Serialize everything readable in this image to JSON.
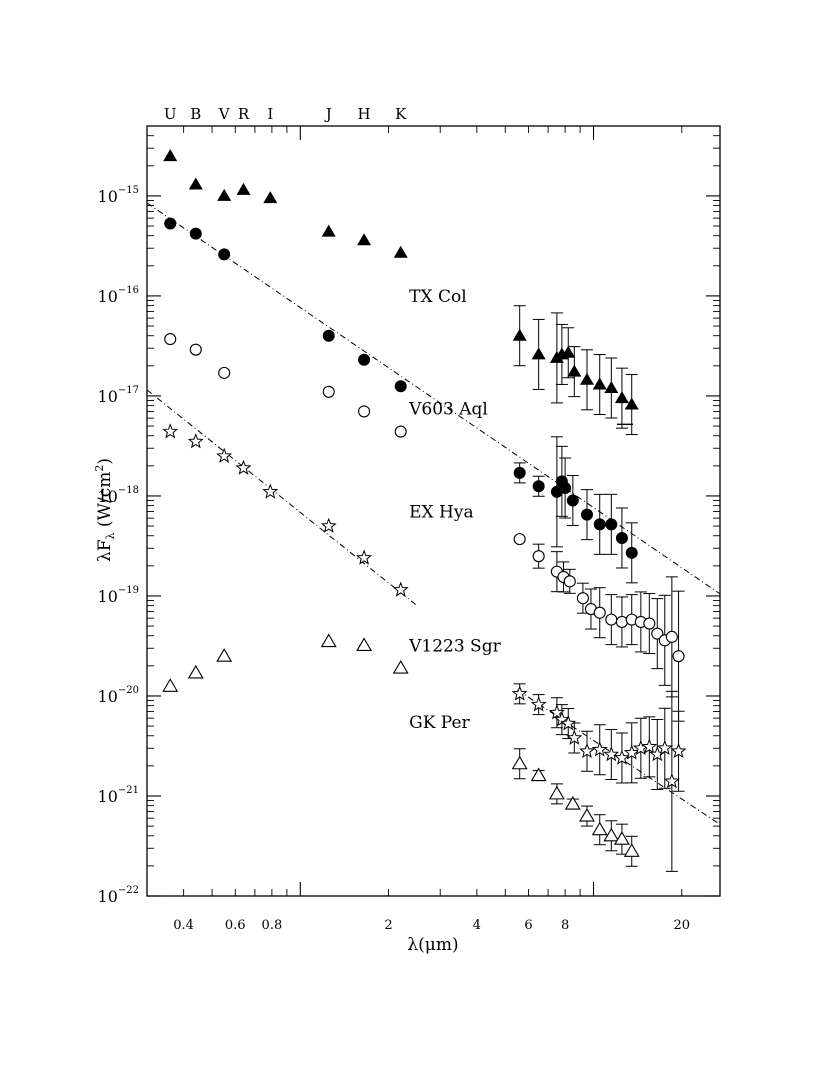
{
  "chart_data": {
    "type": "scatter",
    "xlabel": "λ(μm)",
    "ylabel": "λF",
    "ylabel_sub": "λ",
    "ylabel_units": "(W/cm",
    "ylabel_units_exp": "2",
    "ylabel_units_close": ")",
    "x_scale": "log",
    "y_scale": "log",
    "xlim": [
      0.3,
      27
    ],
    "ylim": [
      1e-22,
      5e-15
    ],
    "x_tick_labels": [
      {
        "value": 0.4,
        "label": "0.4"
      },
      {
        "value": 0.6,
        "label": "0.6"
      },
      {
        "value": 0.8,
        "label": "0.8"
      },
      {
        "value": 2,
        "label": "2"
      },
      {
        "value": 4,
        "label": "4"
      },
      {
        "value": 6,
        "label": "6"
      },
      {
        "value": 8,
        "label": "8"
      },
      {
        "value": 20,
        "label": "20"
      }
    ],
    "y_tick_labels": [
      {
        "value": 1e-15,
        "base": "10",
        "exp": "−15"
      },
      {
        "value": 1e-16,
        "base": "10",
        "exp": "−16"
      },
      {
        "value": 1e-17,
        "base": "10",
        "exp": "−17"
      },
      {
        "value": 1e-18,
        "base": "10",
        "exp": "−18"
      },
      {
        "value": 1e-19,
        "base": "10",
        "exp": "−19"
      },
      {
        "value": 1e-20,
        "base": "10",
        "exp": "−20"
      },
      {
        "value": 1e-21,
        "base": "10",
        "exp": "−21"
      },
      {
        "value": 1e-22,
        "base": "10",
        "exp": "−22"
      }
    ],
    "band_labels": [
      {
        "band": "U",
        "x": 0.36
      },
      {
        "band": "B",
        "x": 0.44
      },
      {
        "band": "V",
        "x": 0.55
      },
      {
        "band": "R",
        "x": 0.64
      },
      {
        "band": "I",
        "x": 0.79
      },
      {
        "band": "J",
        "x": 1.25
      },
      {
        "band": "H",
        "x": 1.65
      },
      {
        "band": "K",
        "x": 2.2
      }
    ],
    "series": [
      {
        "name": "TX Col",
        "marker": "filled-triangle",
        "label_at": [
          2.35,
          1e-16
        ],
        "optical": [
          [
            0.36,
            2.5e-15
          ],
          [
            0.44,
            1.3e-15
          ],
          [
            0.55,
            1e-15
          ],
          [
            0.64,
            1.15e-15
          ],
          [
            0.79,
            9.5e-16
          ],
          [
            1.25,
            4.4e-16
          ],
          [
            1.65,
            3.6e-16
          ],
          [
            2.2,
            2.7e-16
          ]
        ],
        "ir": [
          [
            5.6,
            4e-17,
            0.3
          ],
          [
            6.5,
            2.6e-17,
            0.35
          ],
          [
            7.5,
            2.4e-17,
            0.45
          ],
          [
            7.8,
            2.6e-17,
            0.3
          ],
          [
            8.2,
            2.7e-17,
            0.25
          ],
          [
            8.6,
            1.75e-17,
            0.25
          ],
          [
            9.5,
            1.45e-17,
            0.3
          ],
          [
            10.5,
            1.3e-17,
            0.3
          ],
          [
            11.5,
            1.2e-17,
            0.3
          ],
          [
            12.5,
            9.5e-18,
            0.3
          ],
          [
            13.5,
            8.2e-18,
            0.3
          ]
        ],
        "upper_limits": [
          [
            12.8,
            5.2e-18
          ]
        ]
      },
      {
        "name": "V603 Aql",
        "marker": "filled-circle",
        "label_at": [
          2.35,
          7.5e-18
        ],
        "optical": [
          [
            0.36,
            5.3e-16
          ],
          [
            0.44,
            4.2e-16
          ],
          [
            0.55,
            2.6e-16
          ],
          [
            1.25,
            4e-17
          ],
          [
            1.65,
            2.3e-17
          ],
          [
            2.2,
            1.25e-17
          ]
        ],
        "ir": [
          [
            5.6,
            1.7e-18,
            0.1
          ],
          [
            6.5,
            1.25e-18,
            0.1
          ],
          [
            7.5,
            1.1e-18,
            0.55
          ],
          [
            7.8,
            1.4e-18,
            0.35
          ],
          [
            8.0,
            1.2e-18,
            0.3
          ],
          [
            8.5,
            9e-19,
            0.25
          ],
          [
            9.5,
            6.5e-19,
            0.25
          ],
          [
            10.5,
            5.2e-19,
            0.3
          ],
          [
            11.5,
            5.2e-19,
            0.3
          ],
          [
            12.5,
            3.8e-19,
            0.3
          ],
          [
            13.5,
            2.7e-19,
            0.3
          ]
        ]
      },
      {
        "name": "EX Hya",
        "marker": "open-circle",
        "label_at": [
          2.35,
          7e-19
        ],
        "optical": [
          [
            0.36,
            3.7e-17
          ],
          [
            0.44,
            2.9e-17
          ],
          [
            0.55,
            1.7e-17
          ],
          [
            1.25,
            1.1e-17
          ],
          [
            1.65,
            7e-18
          ],
          [
            2.2,
            4.4e-18
          ]
        ],
        "ir": [
          [
            5.6,
            3.7e-19,
            0
          ],
          [
            6.5,
            2.5e-19,
            0.12
          ],
          [
            7.5,
            1.75e-19,
            0.2
          ],
          [
            7.9,
            1.55e-19,
            0.15
          ],
          [
            8.3,
            1.4e-19,
            0.12
          ],
          [
            9.2,
            9.5e-20,
            0.15
          ],
          [
            9.8,
            7.4e-20,
            0.2
          ],
          [
            10.5,
            6.8e-20,
            0.25
          ],
          [
            11.5,
            5.8e-20,
            0.25
          ],
          [
            12.5,
            5.5e-20,
            0.25
          ],
          [
            13.5,
            5.8e-20,
            0.25
          ],
          [
            14.5,
            5.5e-20,
            0.3
          ],
          [
            15.5,
            5.3e-20,
            0.3
          ],
          [
            16.5,
            4.2e-20,
            0.35
          ],
          [
            17.5,
            3.6e-20,
            0.45
          ],
          [
            18.5,
            3.9e-20,
            0.6
          ],
          [
            19.5,
            2.5e-20,
            0.65
          ]
        ]
      },
      {
        "name": "V1223 Sgr",
        "marker": "open-star",
        "label_at": [
          2.35,
          3.2e-20
        ],
        "optical": [
          [
            0.36,
            4.4e-18
          ],
          [
            0.44,
            3.5e-18
          ],
          [
            0.55,
            2.5e-18
          ],
          [
            0.64,
            1.9e-18
          ],
          [
            0.79,
            1.1e-18
          ],
          [
            1.25,
            5e-19
          ],
          [
            1.65,
            2.4e-19
          ],
          [
            2.2,
            1.15e-19
          ]
        ],
        "ir": [
          [
            5.6,
            1.05e-20,
            0.1
          ],
          [
            6.5,
            8.2e-21,
            0.1
          ],
          [
            7.5,
            6.8e-21,
            0.15
          ],
          [
            7.8,
            5.8e-21,
            0.15
          ],
          [
            8.2,
            5.3e-21,
            0.15
          ],
          [
            8.6,
            3.8e-21,
            0.15
          ],
          [
            9.5,
            2.8e-21,
            0.2
          ],
          [
            10.5,
            2.9e-21,
            0.25
          ],
          [
            11.5,
            2.6e-21,
            0.25
          ],
          [
            12.5,
            2.4e-21,
            0.25
          ],
          [
            13.5,
            2.7e-21,
            0.3
          ],
          [
            14.5,
            3e-21,
            0.3
          ],
          [
            15.5,
            3.1e-21,
            0.3
          ],
          [
            16.5,
            2.6e-21,
            0.35
          ],
          [
            17.5,
            3e-21,
            0.4
          ],
          [
            18.5,
            1.4e-21,
            0.9
          ],
          [
            19.5,
            2.8e-21,
            0.4
          ]
        ]
      },
      {
        "name": "GK Per",
        "marker": "open-triangle",
        "label_at": [
          2.35,
          5.5e-21
        ],
        "optical": [
          [
            0.36,
            1.25e-20
          ],
          [
            0.44,
            1.7e-20
          ],
          [
            0.55,
            2.5e-20
          ],
          [
            1.25,
            3.5e-20
          ],
          [
            1.65,
            3.2e-20
          ],
          [
            2.2,
            1.9e-20
          ]
        ],
        "ir": [
          [
            5.6,
            2.1e-21,
            0.15
          ],
          [
            6.5,
            1.6e-21,
            0.05
          ],
          [
            7.5,
            1.05e-21,
            0.1
          ],
          [
            8.5,
            8.3e-22,
            0.05
          ],
          [
            9.5,
            6.3e-22,
            0.1
          ],
          [
            10.5,
            4.6e-22,
            0.15
          ],
          [
            11.5,
            4e-22,
            0.15
          ],
          [
            12.5,
            3.7e-22,
            0.15
          ],
          [
            13.5,
            2.8e-22,
            0.15
          ]
        ]
      }
    ],
    "fit_lines": [
      {
        "from": [
          0.3,
          8.5e-16
        ],
        "to": [
          27,
          1.05e-19
        ],
        "style": "dashed"
      },
      {
        "from": [
          0.3,
          1.15e-17
        ],
        "to": [
          2.5,
          8e-20
        ],
        "style": "dashed"
      },
      {
        "from": [
          5.5,
          1.15e-20
        ],
        "to": [
          27,
          5.2e-22
        ],
        "style": "dashed"
      }
    ]
  }
}
